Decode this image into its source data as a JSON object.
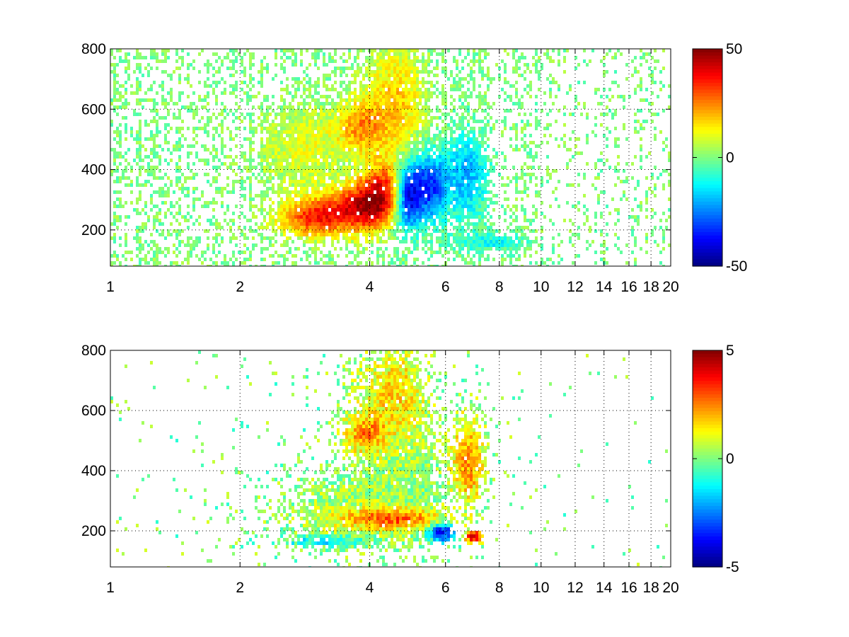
{
  "chart_data": [
    {
      "type": "heatmap",
      "title": "",
      "xlabel": "",
      "ylabel": "",
      "xlim": [
        1,
        20
      ],
      "ylim": [
        80,
        800
      ],
      "x_scale": "log",
      "grid": true,
      "x_ticks": [
        1,
        2,
        4,
        6,
        8,
        10,
        12,
        14,
        16,
        18,
        20
      ],
      "x_tick_labels": [
        "1",
        "2",
        "4",
        "6",
        "8",
        "10",
        "12",
        "14",
        "16",
        "18",
        "20"
      ],
      "y_ticks": [
        200,
        400,
        600,
        800
      ],
      "y_tick_labels": [
        "200",
        "400",
        "600",
        "800"
      ],
      "colormap": "jet",
      "clim": [
        -50,
        50
      ],
      "colorbar_ticks": [
        50,
        0,
        -50
      ],
      "colorbar_tick_labels": [
        "50",
        "0",
        "-50"
      ],
      "colorbar_position": "right",
      "blobs": [
        {
          "x": 2.95,
          "y": 240,
          "sx": 0.35,
          "sy": 45,
          "value": 30
        },
        {
          "x": 3.8,
          "y": 270,
          "sx": 0.45,
          "sy": 55,
          "value": 38
        },
        {
          "x": 4.3,
          "y": 330,
          "sx": 0.35,
          "sy": 65,
          "value": 32
        },
        {
          "x": 4.9,
          "y": 310,
          "sx": 0.25,
          "sy": 75,
          "value": -38
        },
        {
          "x": 5.5,
          "y": 340,
          "sx": 0.35,
          "sy": 75,
          "value": -32
        },
        {
          "x": 6.7,
          "y": 380,
          "sx": 0.55,
          "sy": 100,
          "value": -20
        },
        {
          "x": 4.6,
          "y": 620,
          "sx": 0.5,
          "sy": 130,
          "value": 18
        },
        {
          "x": 3.8,
          "y": 540,
          "sx": 0.35,
          "sy": 60,
          "value": 20
        },
        {
          "x": 2.8,
          "y": 470,
          "sx": 0.4,
          "sy": 90,
          "value": 10
        },
        {
          "x": 7.8,
          "y": 160,
          "sx": 1.0,
          "sy": 22,
          "value": -12
        }
      ]
    },
    {
      "type": "heatmap",
      "title": "",
      "xlabel": "",
      "ylabel": "",
      "xlim": [
        1,
        20
      ],
      "ylim": [
        80,
        800
      ],
      "x_scale": "log",
      "grid": true,
      "x_ticks": [
        1,
        2,
        4,
        6,
        8,
        10,
        12,
        14,
        16,
        18,
        20
      ],
      "x_tick_labels": [
        "1",
        "2",
        "4",
        "6",
        "8",
        "10",
        "12",
        "14",
        "16",
        "18",
        "20"
      ],
      "y_ticks": [
        200,
        400,
        600,
        800
      ],
      "y_tick_labels": [
        "200",
        "400",
        "600",
        "800"
      ],
      "colormap": "jet",
      "clim": [
        -5,
        5
      ],
      "colorbar_ticks": [
        5,
        0,
        -5
      ],
      "colorbar_tick_labels": [
        "5",
        "0",
        "-5"
      ],
      "colorbar_position": "right",
      "blobs": [
        {
          "x": 3.7,
          "y": 280,
          "sx": 0.7,
          "sy": 90,
          "value": 0.4
        },
        {
          "x": 5.0,
          "y": 360,
          "sx": 0.6,
          "sy": 130,
          "value": 0.1
        },
        {
          "x": 4.6,
          "y": 240,
          "sx": 0.8,
          "sy": 25,
          "value": 2.8
        },
        {
          "x": 4.6,
          "y": 650,
          "sx": 0.6,
          "sy": 120,
          "value": 1.6
        },
        {
          "x": 3.9,
          "y": 520,
          "sx": 0.3,
          "sy": 45,
          "value": 2.0
        },
        {
          "x": 6.8,
          "y": 430,
          "sx": 0.45,
          "sy": 110,
          "value": 2.2
        },
        {
          "x": 3.2,
          "y": 165,
          "sx": 0.5,
          "sy": 12,
          "value": -1.6
        },
        {
          "x": 5.9,
          "y": 195,
          "sx": 0.3,
          "sy": 20,
          "value": -4.0
        },
        {
          "x": 7.0,
          "y": 180,
          "sx": 0.25,
          "sy": 15,
          "value": 4.0
        }
      ]
    }
  ]
}
